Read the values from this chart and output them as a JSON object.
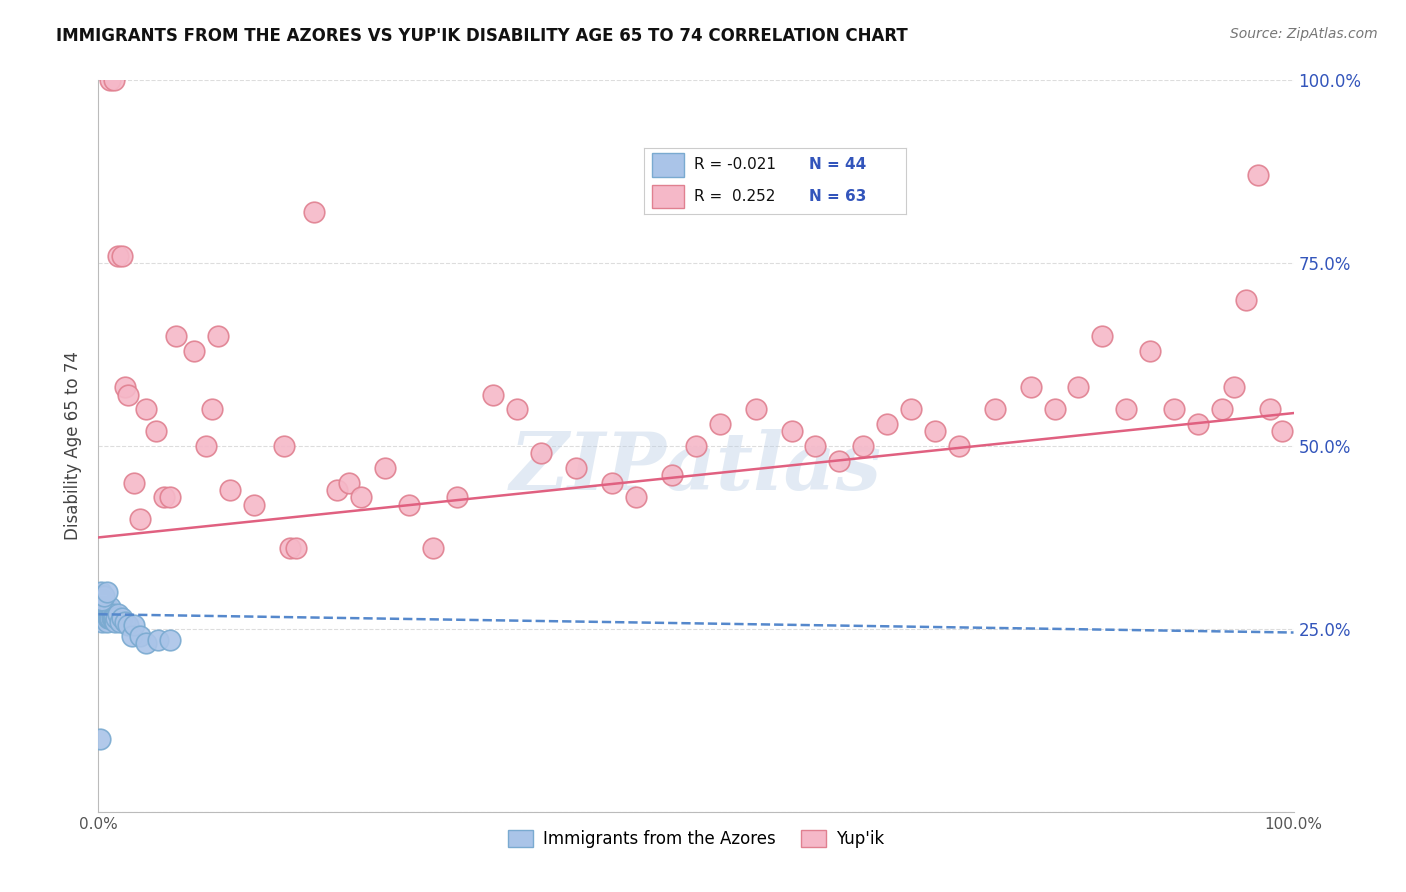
{
  "title": "IMMIGRANTS FROM THE AZORES VS YUP'IK DISABILITY AGE 65 TO 74 CORRELATION CHART",
  "source": "Source: ZipAtlas.com",
  "ylabel": "Disability Age 65 to 74",
  "watermark": "ZIPatlas",
  "background_color": "#ffffff",
  "grid_color": "#dddddd",
  "xlim": [
    0.0,
    1.0
  ],
  "ylim": [
    0.0,
    1.0
  ],
  "series1_name": "Immigrants from the Azores",
  "series1_color": "#aac4e8",
  "series1_edge_color": "#7aaad0",
  "series1_R": "-0.021",
  "series1_N": "44",
  "series1_line_color": "#5588cc",
  "series2_name": "Yup'ik",
  "series2_color": "#f5b8c8",
  "series2_edge_color": "#e08090",
  "series2_R": "0.252",
  "series2_N": "63",
  "series2_line_color": "#e06080",
  "legend_color": "#3355bb",
  "figsize": [
    14.06,
    8.92
  ],
  "dpi": 100,
  "s1_x": [
    0.001,
    0.002,
    0.002,
    0.003,
    0.003,
    0.004,
    0.004,
    0.004,
    0.005,
    0.005,
    0.005,
    0.006,
    0.006,
    0.006,
    0.007,
    0.007,
    0.007,
    0.008,
    0.008,
    0.008,
    0.009,
    0.009,
    0.01,
    0.01,
    0.011,
    0.011,
    0.012,
    0.013,
    0.014,
    0.015,
    0.016,
    0.018,
    0.02,
    0.022,
    0.025,
    0.028,
    0.03,
    0.035,
    0.04,
    0.05,
    0.06,
    0.003,
    0.005,
    0.007
  ],
  "s1_y": [
    0.1,
    0.27,
    0.3,
    0.28,
    0.26,
    0.27,
    0.285,
    0.295,
    0.275,
    0.28,
    0.265,
    0.275,
    0.27,
    0.265,
    0.275,
    0.28,
    0.26,
    0.27,
    0.275,
    0.265,
    0.27,
    0.265,
    0.265,
    0.28,
    0.27,
    0.265,
    0.265,
    0.265,
    0.26,
    0.265,
    0.27,
    0.26,
    0.265,
    0.26,
    0.255,
    0.24,
    0.255,
    0.24,
    0.23,
    0.235,
    0.235,
    0.29,
    0.295,
    0.3
  ],
  "s2_x": [
    0.01,
    0.013,
    0.016,
    0.02,
    0.022,
    0.025,
    0.03,
    0.035,
    0.04,
    0.048,
    0.055,
    0.06,
    0.065,
    0.08,
    0.09,
    0.095,
    0.1,
    0.11,
    0.13,
    0.155,
    0.16,
    0.165,
    0.18,
    0.2,
    0.21,
    0.22,
    0.24,
    0.26,
    0.28,
    0.3,
    0.33,
    0.35,
    0.37,
    0.4,
    0.43,
    0.45,
    0.48,
    0.5,
    0.52,
    0.55,
    0.58,
    0.6,
    0.62,
    0.64,
    0.66,
    0.68,
    0.7,
    0.72,
    0.75,
    0.78,
    0.8,
    0.82,
    0.84,
    0.86,
    0.88,
    0.9,
    0.92,
    0.94,
    0.95,
    0.96,
    0.97,
    0.98,
    0.99
  ],
  "s2_y": [
    1.0,
    1.0,
    0.76,
    0.76,
    0.58,
    0.57,
    0.45,
    0.4,
    0.55,
    0.52,
    0.43,
    0.43,
    0.65,
    0.63,
    0.5,
    0.55,
    0.65,
    0.44,
    0.42,
    0.5,
    0.36,
    0.36,
    0.82,
    0.44,
    0.45,
    0.43,
    0.47,
    0.42,
    0.36,
    0.43,
    0.57,
    0.55,
    0.49,
    0.47,
    0.45,
    0.43,
    0.46,
    0.5,
    0.53,
    0.55,
    0.52,
    0.5,
    0.48,
    0.5,
    0.53,
    0.55,
    0.52,
    0.5,
    0.55,
    0.58,
    0.55,
    0.58,
    0.65,
    0.55,
    0.63,
    0.55,
    0.53,
    0.55,
    0.58,
    0.7,
    0.87,
    0.55,
    0.52
  ]
}
